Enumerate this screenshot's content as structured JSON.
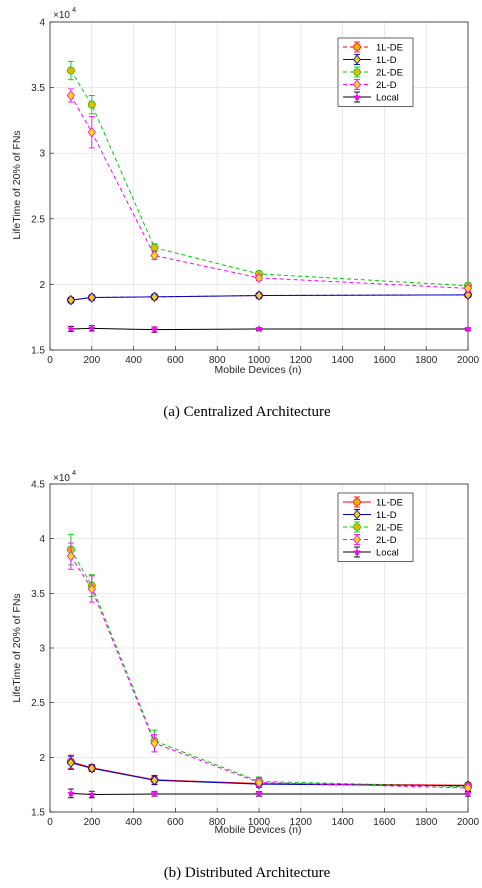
{
  "chart_data": [
    {
      "type": "line",
      "caption": "(a) Centralized Architecture",
      "xlabel": "Mobile Devices (n)",
      "ylabel": "LifeTime of 20% of FNs",
      "y_multiplier": "×10",
      "y_exponent": "4",
      "xlim": [
        0,
        2000
      ],
      "ylim": [
        1.5,
        4
      ],
      "xticks": [
        0,
        200,
        400,
        600,
        800,
        1000,
        1200,
        1400,
        1600,
        1800,
        2000
      ],
      "yticks": [
        1.5,
        2,
        2.5,
        3,
        3.5,
        4
      ],
      "ytick_labels": [
        "1.5",
        "2",
        "2.5",
        "3",
        "3.5",
        "4"
      ],
      "grid": true,
      "legend_position": "top-right",
      "x": [
        100,
        200,
        500,
        1000,
        2000
      ],
      "series": [
        {
          "name": "1L-DE",
          "values": [
            1.88,
            1.9,
            1.905,
            1.915,
            1.92
          ],
          "errors": [
            0.02,
            0.02,
            0.02,
            0.02,
            0.01
          ],
          "color": "#ff0000",
          "marker": "#e8b800",
          "dash": "4 3",
          "shape": "circle"
        },
        {
          "name": "1L-D",
          "values": [
            1.88,
            1.9,
            1.905,
            1.915,
            1.92
          ],
          "errors": [
            0.02,
            0.02,
            0.02,
            0.02,
            0.01
          ],
          "color": "#0000c8",
          "marker": "#f0d000",
          "dash": "",
          "shape": "diamond"
        },
        {
          "name": "2L-DE",
          "values": [
            3.63,
            3.37,
            2.28,
            2.08,
            1.99
          ],
          "errors": [
            0.07,
            0.07,
            0.03,
            0.02,
            0.02
          ],
          "color": "#00cc00",
          "marker": "#e8b800",
          "dash": "4 3",
          "shape": "circle"
        },
        {
          "name": "2L-D",
          "values": [
            3.44,
            3.16,
            2.22,
            2.05,
            1.97
          ],
          "errors": [
            0.05,
            0.12,
            0.03,
            0.02,
            0.02
          ],
          "color": "#ff00ff",
          "marker": "#ffdd00",
          "dash": "4 3",
          "shape": "diamond"
        },
        {
          "name": "Local",
          "values": [
            1.66,
            1.665,
            1.655,
            1.66,
            1.66
          ],
          "errors": [
            0.02,
            0.02,
            0.02,
            0.01,
            0.01
          ],
          "color": "#000000",
          "marker": "#ff00ff",
          "dash": "",
          "shape": "star"
        }
      ]
    },
    {
      "type": "line",
      "caption": "(b) Distributed Architecture",
      "xlabel": "Mobile Devices (n)",
      "ylabel": "LifeTime of 20% of FNs",
      "y_multiplier": "×10",
      "y_exponent": "4",
      "xlim": [
        0,
        2000
      ],
      "ylim": [
        1.5,
        4.5
      ],
      "xticks": [
        0,
        200,
        400,
        600,
        800,
        1000,
        1200,
        1400,
        1600,
        1800,
        2000
      ],
      "yticks": [
        1.5,
        2,
        2.5,
        3,
        3.5,
        4,
        4.5
      ],
      "ytick_labels": [
        "1.5",
        "2",
        "2.5",
        "3",
        "3.5",
        "4",
        "4.5"
      ],
      "grid": true,
      "legend_position": "top-right",
      "x": [
        100,
        200,
        500,
        1000,
        2000
      ],
      "series": [
        {
          "name": "1L-DE",
          "values": [
            1.96,
            1.905,
            1.795,
            1.76,
            1.745
          ],
          "errors": [
            0.06,
            0.03,
            0.04,
            0.03,
            0.02
          ],
          "color": "#ff0000",
          "marker": "#e8b800",
          "dash": "",
          "shape": "circle"
        },
        {
          "name": "1L-D",
          "values": [
            1.95,
            1.9,
            1.79,
            1.755,
            1.74
          ],
          "errors": [
            0.06,
            0.03,
            0.04,
            0.03,
            0.02
          ],
          "color": "#0000c8",
          "marker": "#f0d000",
          "dash": "",
          "shape": "diamond"
        },
        {
          "name": "2L-DE",
          "values": [
            3.9,
            3.57,
            2.15,
            1.78,
            1.73
          ],
          "errors": [
            0.14,
            0.1,
            0.1,
            0.04,
            0.03
          ],
          "color": "#00cc00",
          "marker": "#e8b800",
          "dash": "4 3",
          "shape": "circle"
        },
        {
          "name": "2L-D",
          "values": [
            3.84,
            3.54,
            2.13,
            1.77,
            1.72
          ],
          "errors": [
            0.12,
            0.12,
            0.08,
            0.04,
            0.03
          ],
          "color": "#ff00ff",
          "marker": "#ffdd00",
          "dash": "4 3",
          "shape": "diamond"
        },
        {
          "name": "Local",
          "values": [
            1.67,
            1.66,
            1.665,
            1.665,
            1.665
          ],
          "errors": [
            0.04,
            0.03,
            0.02,
            0.02,
            0.02
          ],
          "color": "#000000",
          "marker": "#ff00ff",
          "dash": "",
          "shape": "star"
        }
      ]
    }
  ]
}
